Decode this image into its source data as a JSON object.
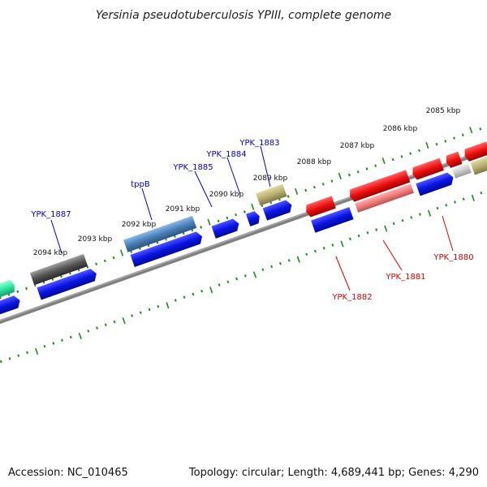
{
  "title": "Yersinia pseudotuberculosis YPIII, complete genome",
  "footer": {
    "accession": "Accession: NC_010465",
    "summary": "Topology: circular; Length: 4,689,441 bp; Genes: 4,290"
  },
  "colors": {
    "background": "#ffffff",
    "backbone": "#808080",
    "tick": "#1a8c1a",
    "forward_label": "#0000cc",
    "reverse_label": "#dd0000"
  },
  "axis": {
    "tick_unit": "kbp",
    "ticks": [
      {
        "label": "2085 kbp"
      },
      {
        "label": "2086 kbp"
      },
      {
        "label": "2087 kbp"
      },
      {
        "label": "2088 kbp"
      },
      {
        "label": "2089 kbp"
      },
      {
        "label": "2090 kbp"
      },
      {
        "label": "2091 kbp"
      },
      {
        "label": "2092 kbp"
      },
      {
        "label": "2093 kbp"
      },
      {
        "label": "2094 kbp"
      }
    ]
  },
  "labels": {
    "forward": [
      "YPK_1887",
      "tppB",
      "YPK_1885",
      "YPK_1884",
      "YPK_1883"
    ],
    "reverse": [
      "YPK_1882",
      "YPK_1881",
      "YPK_1880"
    ]
  },
  "features": [
    {
      "name": "cds-teal",
      "color": "#2ee8a0"
    },
    {
      "name": "cds-dark-gray",
      "color": "#555555"
    },
    {
      "name": "cds-steel-blue",
      "color": "#4a7fb8"
    },
    {
      "name": "cds-khaki",
      "color": "#b8b070"
    },
    {
      "name": "cds-red",
      "color": "#ee1010"
    },
    {
      "name": "cds-pink",
      "color": "#f07d7d"
    },
    {
      "name": "cds-light-gray",
      "color": "#c8c8c8"
    },
    {
      "name": "cds-blue",
      "color": "#0a14e6"
    }
  ]
}
